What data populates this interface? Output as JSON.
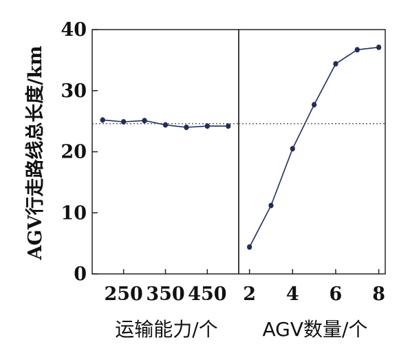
{
  "chart_data": [
    {
      "type": "line",
      "xlabel": "运输能力/个",
      "ylabel": "AGV行走路线总长度/km",
      "ylim": [
        0,
        40
      ],
      "yticks": [
        0,
        10,
        20,
        30,
        40
      ],
      "xlim": [
        175,
        525
      ],
      "xticks": [
        250,
        350,
        450
      ],
      "tick_labels": [
        "250",
        "350",
        "450"
      ],
      "reference_y": 24.6,
      "series": [
        {
          "x": [
            200,
            250,
            300,
            350,
            400,
            450,
            500
          ],
          "values": [
            25.2,
            24.9,
            25.1,
            24.4,
            24.0,
            24.2,
            24.2
          ]
        }
      ]
    },
    {
      "type": "line",
      "xlabel": "AGV数量/个",
      "ylim": [
        0,
        40
      ],
      "xlim": [
        1.5,
        8.3
      ],
      "xticks": [
        2,
        4,
        6,
        8
      ],
      "tick_labels": [
        "2",
        "4",
        "6",
        "8"
      ],
      "reference_y": 24.6,
      "series": [
        {
          "x": [
            2,
            3,
            4,
            5,
            6,
            7,
            8
          ],
          "values": [
            4.4,
            11.2,
            20.5,
            27.7,
            34.4,
            36.7,
            37.1
          ]
        }
      ]
    }
  ],
  "y_tick_labels": [
    "0",
    "10",
    "20",
    "30",
    "40"
  ],
  "colors": {
    "series": "#1f2d5c",
    "reference": "#555555",
    "axis": "#222222"
  }
}
